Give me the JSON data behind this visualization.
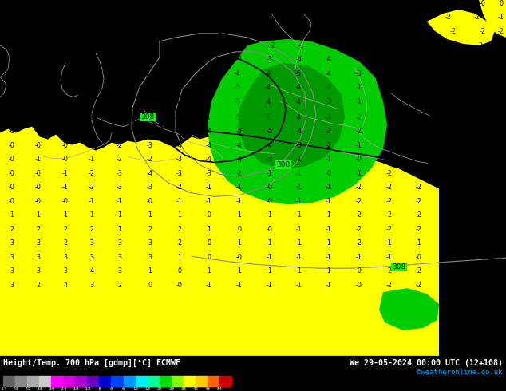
{
  "title_left": "Height/Temp. 700 hPa [gdmp][°C] ECMWF",
  "title_right": "We 29-05-2024 00:00 UTC (12+108)",
  "credit": "©weatheronline.co.uk",
  "bg_green": "#00ff00",
  "bg_dark_green": "#00cc00",
  "bg_yellow": "#ffff00",
  "text_color": "#000000",
  "contour_color": "#888888",
  "black_contour": "#000000",
  "fig_width": 6.34,
  "fig_height": 4.9,
  "colorbar_colors": [
    "#606060",
    "#888888",
    "#aaaaaa",
    "#cccccc",
    "#ff00ff",
    "#dd00dd",
    "#aa00cc",
    "#6600bb",
    "#0000cc",
    "#0044ff",
    "#0099ff",
    "#00eeff",
    "#00ff99",
    "#00dd00",
    "#88ff00",
    "#ffff00",
    "#ffcc00",
    "#ff6600",
    "#cc0000"
  ],
  "colorbar_labels": [
    "-54",
    "-48",
    "-42",
    "-38",
    "-30",
    "-24",
    "-18",
    "-12",
    "-8",
    "0",
    "6",
    "12",
    "18",
    "24",
    "30",
    "36",
    "42",
    "48",
    "54"
  ]
}
